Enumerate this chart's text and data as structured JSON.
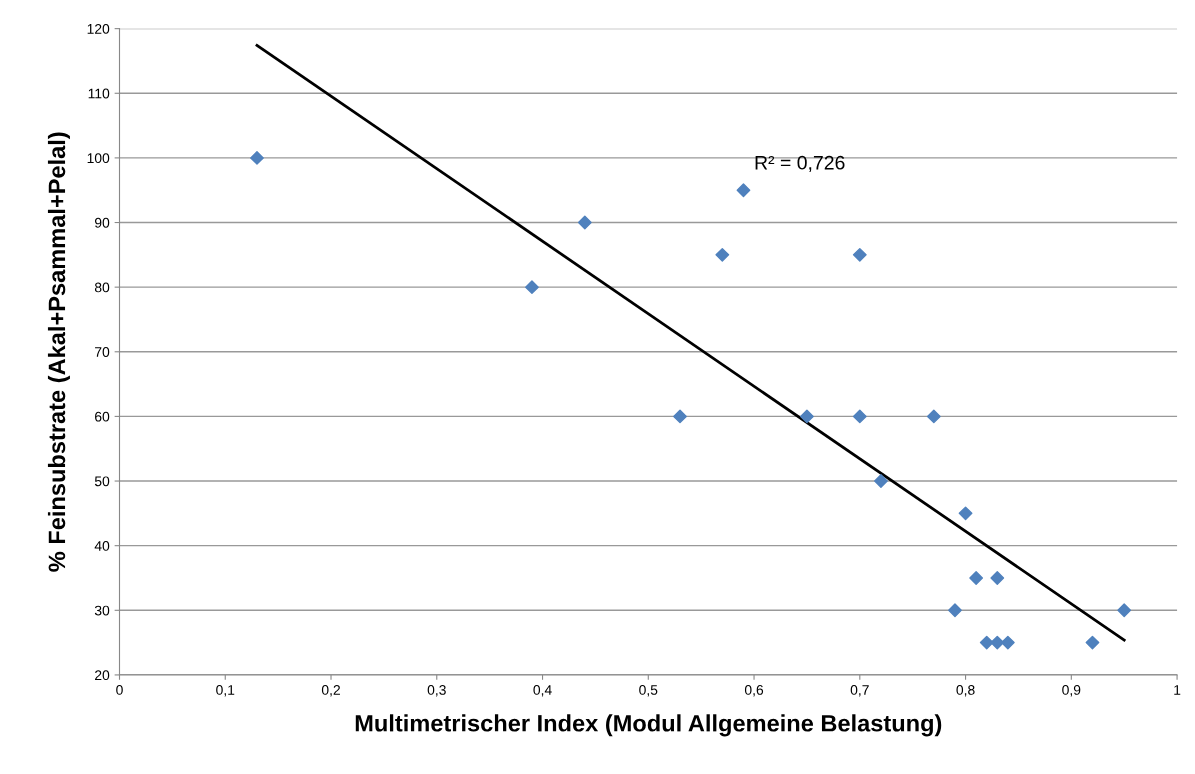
{
  "chart_data": {
    "type": "scatter",
    "xlabel": "Multimetrischer Index (Modul Allgemeine Belastung)",
    "ylabel": "% Feinsubstrate (Akal+Psammal+Pelal)",
    "x": [
      0.13,
      0.39,
      0.44,
      0.53,
      0.57,
      0.59,
      0.65,
      0.7,
      0.7,
      0.72,
      0.77,
      0.79,
      0.8,
      0.81,
      0.82,
      0.83,
      0.83,
      0.84,
      0.92,
      0.95
    ],
    "series": [
      {
        "color": "#4f81bd",
        "marker": "diamond",
        "values": [
          100,
          80,
          90,
          60,
          85,
          95,
          60,
          85,
          60,
          50,
          60,
          30,
          45,
          35,
          25,
          35,
          25,
          25,
          25,
          30
        ]
      },
      {
        "type": "line",
        "color": "#000000",
        "marker": "none",
        "x": [
          0.13,
          0.95
        ],
        "values": [
          117.4,
          25.4
        ]
      }
    ],
    "annotations": [
      "R² = 0,726"
    ],
    "xlim": [
      0,
      1
    ],
    "ylim": [
      20,
      120
    ],
    "xticks": [
      0,
      {
        "value": 0.1,
        "label": "0,1"
      },
      {
        "value": 0.2,
        "label": "0,2"
      },
      {
        "value": 0.3,
        "label": "0,3"
      },
      {
        "value": 0.4,
        "label": "0,4"
      },
      {
        "value": 0.5,
        "label": "0,5"
      },
      {
        "value": 0.6,
        "label": "0,6"
      },
      {
        "value": 0.7,
        "label": "0,7"
      },
      {
        "value": 0.8,
        "label": "0,8"
      },
      {
        "value": 0.9,
        "label": "0,9"
      },
      1
    ],
    "yticks": [
      20,
      30,
      40,
      50,
      60,
      70,
      80,
      90,
      100,
      110,
      120
    ],
    "grid": "y",
    "legend": false
  }
}
